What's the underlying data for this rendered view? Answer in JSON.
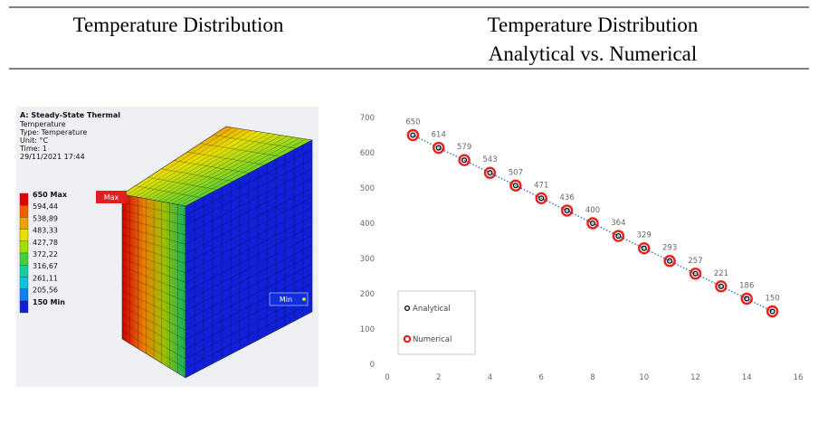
{
  "header": {
    "left": "Temperature Distribution",
    "right": [
      "Temperature Distribution",
      "Analytical vs. Numerical"
    ]
  },
  "ansys": {
    "title": "A: Steady-State Thermal",
    "info": [
      "Temperature",
      "Type: Temperature",
      "Unit: °C",
      "Time: 1",
      "29/11/2021 17:44"
    ],
    "legend": [
      "650 Max",
      "594,44",
      "538,89",
      "483,33",
      "427,78",
      "372,22",
      "316,67",
      "261,11",
      "205,56",
      "150 Min"
    ],
    "max_label": "Max",
    "min_label": "Min"
  },
  "chart_data": {
    "type": "scatter",
    "x": [
      1,
      2,
      3,
      4,
      5,
      6,
      7,
      8,
      9,
      10,
      11,
      12,
      13,
      14,
      15
    ],
    "series": [
      {
        "name": "Analytical",
        "color": "#000000",
        "values": [
          650,
          614,
          579,
          543,
          507,
          471,
          436,
          400,
          364,
          329,
          293,
          257,
          221,
          186,
          150
        ]
      },
      {
        "name": "Numerical",
        "color": "#e8201c",
        "values": [
          650,
          614,
          579,
          543,
          507,
          471,
          436,
          400,
          364,
          329,
          293,
          257,
          221,
          186,
          150
        ]
      }
    ],
    "xlim": [
      0,
      16
    ],
    "xticks": [
      0,
      2,
      4,
      6,
      8,
      10,
      12,
      14,
      16
    ],
    "ylim": [
      0,
      700
    ],
    "yticks": [
      0,
      100,
      200,
      300,
      400,
      500,
      600,
      700
    ],
    "line_color": "#4472c4",
    "grid": false,
    "legend": "lower left"
  }
}
